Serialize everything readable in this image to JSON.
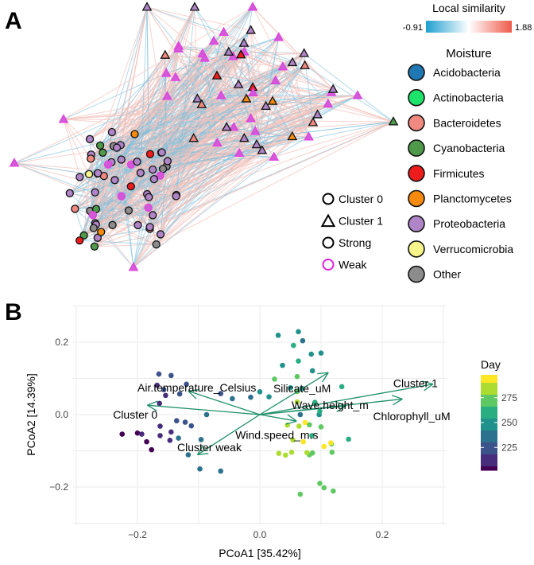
{
  "panel_a": {
    "label": "A",
    "similarity_legend": {
      "title": "Local similarity",
      "min_label": "-0.91",
      "max_label": "1.88",
      "min": -0.91,
      "max": 1.88,
      "low_color": "#1f9fd0",
      "high_color": "#ef5a4a"
    },
    "moisture_legend": {
      "title": "Moisture",
      "items": [
        {
          "label": "Acidobacteria",
          "color": "#1f77b4"
        },
        {
          "label": "Actinobacteria",
          "color": "#1ee36a"
        },
        {
          "label": "Bacteroidetes",
          "color": "#f08a80"
        },
        {
          "label": "Cyanobacteria",
          "color": "#4e9a4a"
        },
        {
          "label": "Firmicutes",
          "color": "#ee1c1c"
        },
        {
          "label": "Planctomycetes",
          "color": "#f58a0c"
        },
        {
          "label": "Proteobacteria",
          "color": "#b085c8"
        },
        {
          "label": "Verrucomicrobia",
          "color": "#f8f58a"
        },
        {
          "label": "Other",
          "color": "#8c8c8c"
        }
      ]
    },
    "shape_legend": [
      {
        "label": "Cluster 0",
        "shape": "circle",
        "stroke": "#000000"
      },
      {
        "label": "Cluster 1",
        "shape": "triangle",
        "stroke": "#000000"
      },
      {
        "label": "Strong",
        "shape": "circle",
        "stroke": "#000000"
      },
      {
        "label": "Weak",
        "shape": "circle",
        "stroke": "#e020e0"
      }
    ]
  },
  "chart_data": {
    "type": "scatter",
    "panel_label": "B",
    "xlabel": "PCoA1 [35.42%]",
    "ylabel": "PCoA2 [14.39%]",
    "xlim": [
      -0.31,
      0.31
    ],
    "ylim": [
      -0.3,
      0.3
    ],
    "xticks": [
      {
        "v": -0.2,
        "label": "−0.2"
      },
      {
        "v": 0.0,
        "label": "0.0"
      },
      {
        "v": 0.2,
        "label": "0.2"
      }
    ],
    "yticks": [
      {
        "v": 0.2,
        "label": "0.2"
      },
      {
        "v": 0.0,
        "label": "0.0"
      },
      {
        "v": -0.2,
        "label": "−0.2"
      }
    ],
    "grid": true,
    "colorbar": {
      "title": "Day",
      "min": 202,
      "max": 298,
      "ticks": [
        {
          "v": 225,
          "label": "225"
        },
        {
          "v": 250,
          "label": "250"
        },
        {
          "v": 275,
          "label": "275"
        }
      ]
    },
    "points": [
      [
        -0.225,
        -0.054,
        206
      ],
      [
        -0.2,
        -0.051,
        207
      ],
      [
        -0.193,
        -0.054,
        208
      ],
      [
        -0.185,
        -0.075,
        205
      ],
      [
        -0.177,
        -0.097,
        206
      ],
      [
        -0.163,
        -0.058,
        210
      ],
      [
        -0.147,
        -0.071,
        209
      ],
      [
        -0.145,
        -0.048,
        212
      ],
      [
        -0.163,
        -0.032,
        214
      ],
      [
        -0.165,
        0.112,
        220
      ],
      [
        -0.145,
        0.108,
        222
      ],
      [
        -0.168,
        0.081,
        219
      ],
      [
        -0.157,
        0.069,
        221
      ],
      [
        -0.154,
        0.053,
        218
      ],
      [
        -0.131,
        0.057,
        224
      ],
      [
        -0.164,
        0.031,
        217
      ],
      [
        -0.12,
        0.084,
        220
      ],
      [
        -0.136,
        -0.017,
        228
      ],
      [
        -0.122,
        -0.021,
        230
      ],
      [
        -0.112,
        -0.031,
        227
      ],
      [
        -0.087,
        0.0,
        232
      ],
      [
        -0.064,
        0.058,
        230
      ],
      [
        -0.045,
        0.044,
        233
      ],
      [
        -0.015,
        0.048,
        236
      ],
      [
        -0.133,
        -0.065,
        236
      ],
      [
        -0.096,
        -0.069,
        234
      ],
      [
        -0.117,
        -0.111,
        238
      ],
      [
        -0.098,
        -0.15,
        240
      ],
      [
        -0.064,
        -0.156,
        237
      ],
      [
        0.03,
        0.219,
        246
      ],
      [
        0.063,
        0.229,
        244
      ],
      [
        0.07,
        0.204,
        243
      ],
      [
        0.084,
        0.167,
        245
      ],
      [
        0.1,
        0.17,
        246
      ],
      [
        0.037,
        0.136,
        250
      ],
      [
        0.086,
        0.121,
        248
      ],
      [
        0.0,
        0.063,
        252
      ],
      [
        0.015,
        0.049,
        254
      ],
      [
        0.05,
        0.074,
        244
      ],
      [
        0.069,
        0.072,
        250
      ],
      [
        0.066,
        0.0,
        240
      ],
      [
        0.134,
        0.077,
        258
      ],
      [
        0.145,
        -0.068,
        258
      ],
      [
        0.097,
        0.0,
        255
      ],
      [
        0.098,
        0.009,
        257
      ],
      [
        0.055,
        0.191,
        262
      ],
      [
        0.063,
        0.148,
        266
      ],
      [
        0.024,
        0.098,
        270
      ],
      [
        0.061,
        0.105,
        268
      ],
      [
        0.061,
        0.064,
        268
      ],
      [
        0.081,
        -0.028,
        270
      ],
      [
        0.1,
        -0.034,
        272
      ],
      [
        0.117,
        -0.081,
        270
      ],
      [
        0.118,
        -0.104,
        268
      ],
      [
        0.086,
        -0.106,
        270
      ],
      [
        0.081,
        -0.111,
        268
      ],
      [
        0.098,
        -0.19,
        272
      ],
      [
        0.105,
        -0.202,
        270
      ],
      [
        0.12,
        -0.211,
        268
      ],
      [
        0.066,
        -0.22,
        275
      ],
      [
        0.085,
        -0.058,
        265
      ],
      [
        0.09,
        0.034,
        262
      ],
      [
        0.045,
        -0.029,
        282
      ],
      [
        0.054,
        -0.07,
        285
      ],
      [
        0.031,
        -0.107,
        282
      ],
      [
        0.042,
        -0.112,
        283
      ],
      [
        0.052,
        -0.104,
        286
      ],
      [
        0.077,
        -0.105,
        285
      ],
      [
        0.064,
        -0.032,
        288
      ],
      [
        0.061,
        0.035,
        288
      ],
      [
        0.074,
        -0.022,
        296
      ],
      [
        0.071,
        -0.075,
        295
      ],
      [
        0.105,
        -0.088,
        294
      ],
      [
        0.116,
        -0.078,
        296
      ]
    ],
    "arrows": [
      {
        "label": "Cluster 0",
        "x": -0.184,
        "y": 0.026
      },
      {
        "label": "Air.temperature_Celsius",
        "x": -0.117,
        "y": 0.065
      },
      {
        "label": "Silicate_uM",
        "x": 0.112,
        "y": 0.116
      },
      {
        "label": "Cluster 1",
        "x": 0.283,
        "y": 0.084
      },
      {
        "label": "Wave.height_m",
        "x": 0.141,
        "y": 0.024
      },
      {
        "label": "Chlorophyll_uM",
        "x": 0.233,
        "y": 0.043
      },
      {
        "label": "Wind.speed_m.s",
        "x": 0.06,
        "y": -0.018
      },
      {
        "label": "Cluster weak",
        "x": -0.102,
        "y": -0.111
      }
    ],
    "arrow_color": "#1f8f6a"
  }
}
